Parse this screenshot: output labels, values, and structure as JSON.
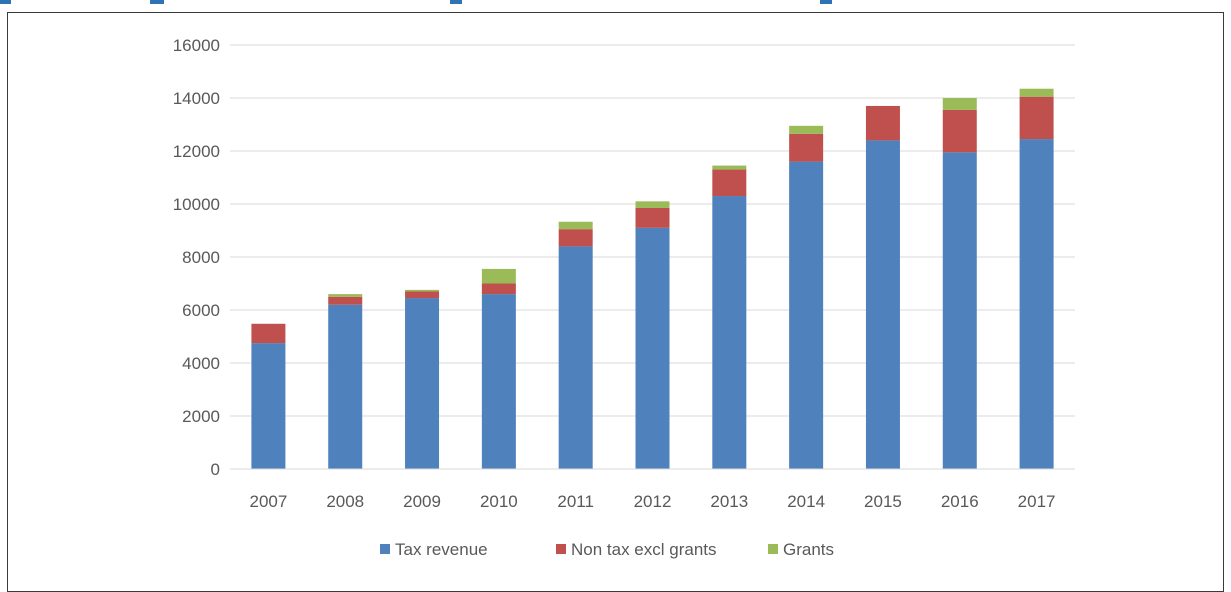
{
  "chart_data": {
    "type": "bar",
    "stacked": true,
    "categories": [
      "2007",
      "2008",
      "2009",
      "2010",
      "2011",
      "2012",
      "2013",
      "2014",
      "2015",
      "2016",
      "2017"
    ],
    "series": [
      {
        "name": "Tax revenue",
        "color": "#4f81bd",
        "values": [
          4750,
          6200,
          6450,
          6600,
          8400,
          9100,
          10300,
          11600,
          12400,
          11950,
          12450
        ]
      },
      {
        "name": "Non tax excl grants",
        "color": "#c0504d",
        "values": [
          730,
          300,
          250,
          400,
          650,
          750,
          1000,
          1050,
          1300,
          1600,
          1600
        ]
      },
      {
        "name": "Grants",
        "color": "#9bbb59",
        "values": [
          0,
          100,
          60,
          550,
          280,
          250,
          150,
          300,
          0,
          450,
          300
        ]
      }
    ],
    "yticks": [
      "0",
      "2000",
      "4000",
      "6000",
      "8000",
      "10000",
      "12000",
      "14000",
      "16000"
    ],
    "ylim": [
      0,
      16000
    ],
    "grid": true,
    "legend_position": "bottom",
    "gridline_color": "#d9d9d9",
    "text_color": "#595959"
  }
}
